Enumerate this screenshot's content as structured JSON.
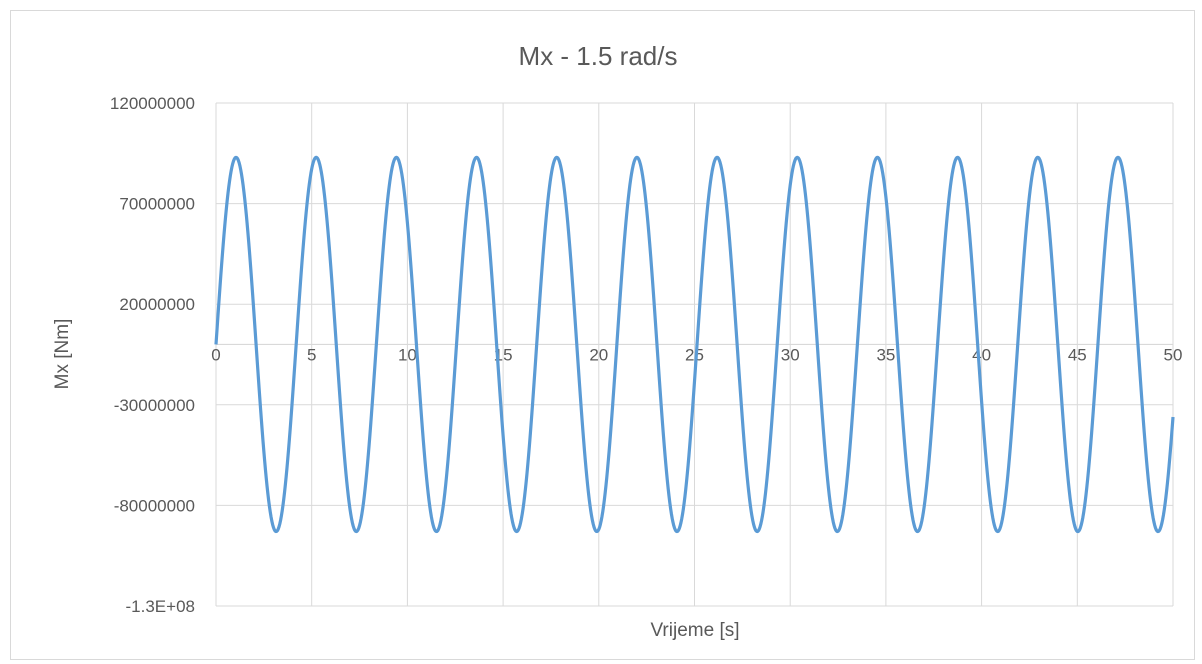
{
  "chart_data": {
    "type": "line",
    "title": "Mx - 1.5 rad/s",
    "xlabel": "Vrijeme [s]",
    "ylabel": "Mx [Nm]",
    "xlim": [
      0,
      50
    ],
    "ylim": [
      -130000000,
      120000000
    ],
    "x_ticks": [
      "0",
      "5",
      "10",
      "15",
      "20",
      "25",
      "30",
      "35",
      "40",
      "45",
      "50"
    ],
    "y_ticks": [
      "120000000",
      "70000000",
      "20000000",
      "-30000000",
      "-80000000",
      "-1.3E+08"
    ],
    "grid": "vertical and horizontal",
    "legend": "none",
    "series": [
      {
        "color": "#5b9bd5",
        "function": "Mx = 93000000 * sin(1.5 * t)",
        "amplitude": 93000000,
        "omega": 1.5,
        "t_range": [
          0,
          50
        ],
        "peaks": [
          {
            "t": 1.05,
            "Mx": 93000000
          },
          {
            "t": 5.24,
            "Mx": 93000000
          },
          {
            "t": 9.42,
            "Mx": 93000000
          },
          {
            "t": 13.61,
            "Mx": 93000000
          },
          {
            "t": 17.8,
            "Mx": 93000000
          },
          {
            "t": 21.99,
            "Mx": 93000000
          },
          {
            "t": 26.18,
            "Mx": 93000000
          },
          {
            "t": 30.37,
            "Mx": 93000000
          },
          {
            "t": 34.56,
            "Mx": 93000000
          },
          {
            "t": 38.75,
            "Mx": 93000000
          },
          {
            "t": 42.94,
            "Mx": 93000000
          },
          {
            "t": 47.12,
            "Mx": 93000000
          }
        ],
        "troughs": [
          {
            "t": 3.14,
            "Mx": -93000000
          },
          {
            "t": 7.33,
            "Mx": -93000000
          },
          {
            "t": 11.52,
            "Mx": -93000000
          },
          {
            "t": 15.71,
            "Mx": -93000000
          },
          {
            "t": 19.9,
            "Mx": -93000000
          },
          {
            "t": 24.09,
            "Mx": -93000000
          },
          {
            "t": 28.27,
            "Mx": -93000000
          },
          {
            "t": 32.46,
            "Mx": -93000000
          },
          {
            "t": 36.65,
            "Mx": -93000000
          },
          {
            "t": 40.84,
            "Mx": -93000000
          },
          {
            "t": 45.03,
            "Mx": -93000000
          },
          {
            "t": 49.22,
            "Mx": -93000000
          }
        ]
      }
    ]
  }
}
